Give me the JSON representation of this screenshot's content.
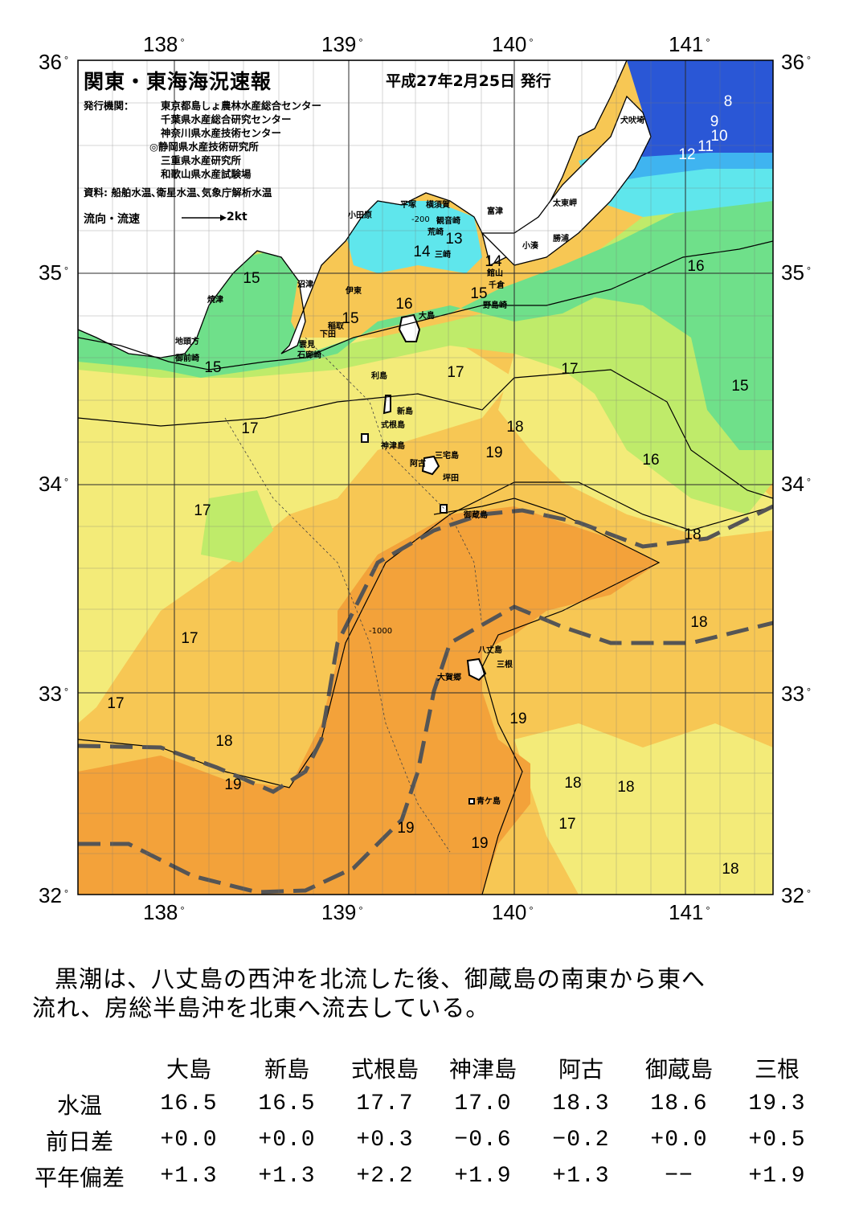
{
  "map": {
    "title": "関東・東海海況速報",
    "issued": "平成27年2月25日 発行",
    "org_heading": "発行機関：",
    "orgs": [
      "東京都島しょ農林水産総合センター",
      "千葉県水産総合研究センター",
      "神奈川県水産技術センター",
      "◎静岡県水産技術研究所",
      "三重県水産研究所",
      "和歌山県水産試験場"
    ],
    "source": "資料: 船舶水温､衛星水温､気象庁解析水温",
    "flow_label": "流向・流速",
    "flow_value": "2kt",
    "lon_labels": [
      "138",
      "139",
      "140",
      "141"
    ],
    "lat_labels": [
      "36",
      "35",
      "34",
      "33",
      "32"
    ],
    "colors": {
      "t8": "#2a57d6",
      "t12": "#3fb4f0",
      "t14": "#5fe6ec",
      "t15": "#6fe08a",
      "t16": "#bfeb6a",
      "t17": "#f3eb79",
      "t18": "#f7c754",
      "t19": "#f3a23a",
      "land": "#ffffff",
      "kuroshio_axis": "#555555",
      "grid": "#2a2a2a"
    },
    "isotherm_labels": [
      "8",
      "9",
      "10",
      "11",
      "12",
      "13",
      "14",
      "14",
      "14",
      "15",
      "15",
      "15",
      "15",
      "15",
      "15",
      "16",
      "16",
      "16",
      "16",
      "17",
      "17",
      "17",
      "17",
      "17",
      "17",
      "17",
      "18",
      "18",
      "18",
      "18",
      "18",
      "18",
      "18",
      "19",
      "19",
      "19",
      "19",
      "19"
    ],
    "places": [
      "犬吠埼",
      "太東岬",
      "勝浦",
      "小湊",
      "富津",
      "千倉",
      "館山",
      "野島崎",
      "横須賀",
      "観音崎",
      "平塚",
      "荒崎",
      "三崎",
      "小田原",
      "大島",
      "沼津",
      "伊東",
      "稲取",
      "下田",
      "雲見",
      "石廊崎",
      "焼津",
      "地頭方",
      "御前崎",
      "利島",
      "新島",
      "式根島",
      "神津島",
      "三宅島",
      "阿古",
      "坪田",
      "御蔵島",
      "八丈島",
      "三根",
      "大賀郷",
      "青ケ島"
    ],
    "depth_labels": [
      "-200",
      "-1000"
    ]
  },
  "summary": {
    "line1": "黒潮は、八丈島の西沖を北流した後、御蔵島の南東から東へ",
    "line2": "流れ、房総半島沖を北東へ流去している。"
  },
  "table": {
    "stations": [
      "大島",
      "新島",
      "式根島",
      "神津島",
      "阿古",
      "御蔵島",
      "三根"
    ],
    "rows": [
      {
        "label": "水温",
        "values": [
          "16.5",
          "16.5",
          "17.7",
          "17.0",
          "18.3",
          "18.6",
          "19.3"
        ]
      },
      {
        "label": "前日差",
        "values": [
          "+0.0",
          "+0.0",
          "+0.3",
          "−0.6",
          "−0.2",
          "+0.0",
          "+0.5"
        ]
      },
      {
        "label": "平年偏差",
        "values": [
          "+1.3",
          "+1.3",
          "+2.2",
          "+1.9",
          "+1.3",
          "−−",
          "+1.9"
        ]
      }
    ]
  }
}
